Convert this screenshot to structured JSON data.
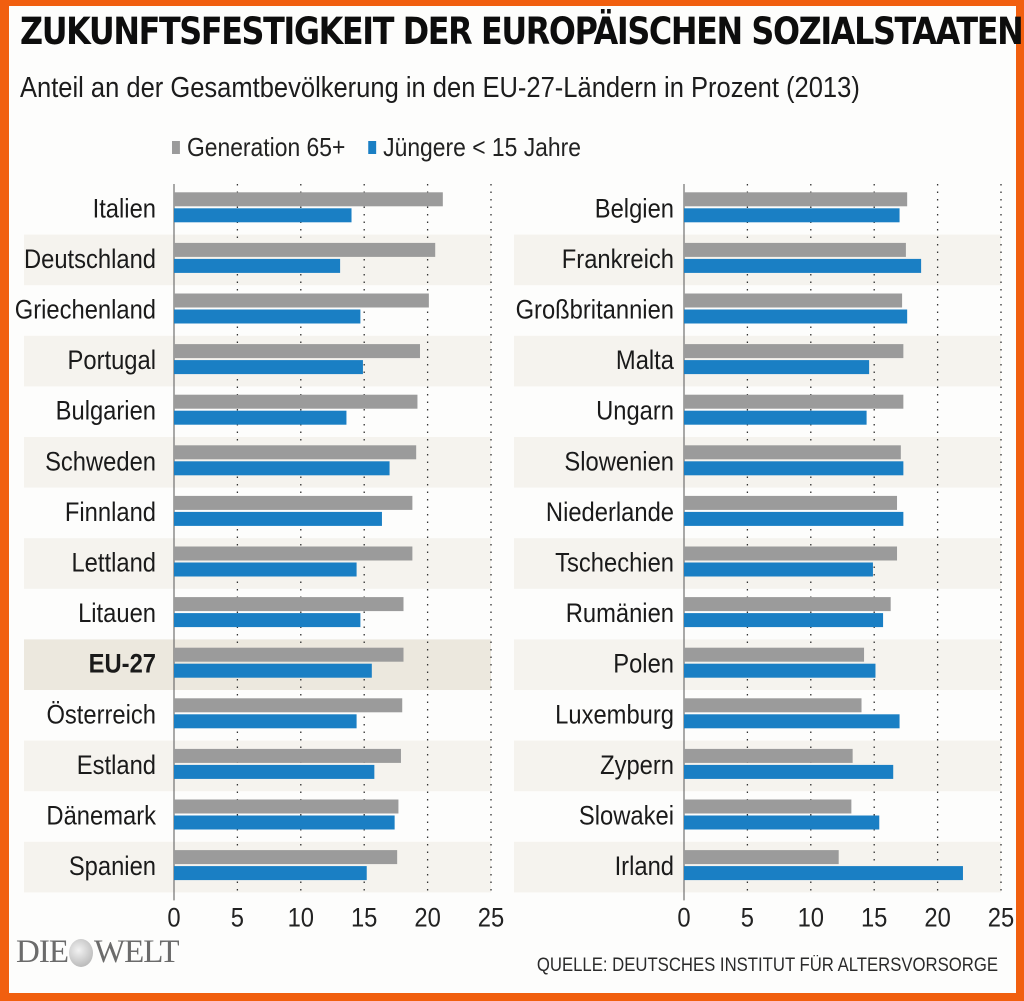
{
  "header": {
    "title": "ZUKUNFTSFESTIGKEIT DER EUROPÄISCHEN SOZIALSTAATEN",
    "subtitle": "Anteil an der Gesamtbevölkerung in den EU-27-Ländern in Prozent (2013)"
  },
  "legend": [
    {
      "label": "Generation 65+",
      "color": "#9b9b9b"
    },
    {
      "label": "Jüngere < 15 Jahre",
      "color": "#1a7fc4"
    }
  ],
  "footer": {
    "logo_left": "DIE",
    "logo_right": "WELT",
    "source": "QUELLE: DEUTSCHES INSTITUT FÜR ALTERSVORSORGE"
  },
  "colors": {
    "frame": "#f15f0f",
    "gray_bar": "#9b9b9b",
    "blue_bar": "#1a7fc4",
    "stripe": "#f5f3ee",
    "highlight": "#ece8de"
  },
  "chart_data": [
    {
      "type": "bar",
      "orientation": "horizontal",
      "xlim": [
        0,
        25
      ],
      "xticks": [
        0,
        5,
        10,
        15,
        20,
        25
      ],
      "grid": true,
      "legend_position": "top",
      "categories": [
        "Italien",
        "Deutschland",
        "Griechenland",
        "Portugal",
        "Bulgarien",
        "Schweden",
        "Finnland",
        "Lettland",
        "Litauen",
        "EU-27",
        "Österreich",
        "Estland",
        "Dänemark",
        "Spanien"
      ],
      "highlight": "EU-27",
      "series": [
        {
          "name": "Generation 65+",
          "values": [
            21.2,
            20.6,
            20.1,
            19.4,
            19.2,
            19.1,
            18.8,
            18.8,
            18.1,
            18.1,
            18.0,
            17.9,
            17.7,
            17.6
          ]
        },
        {
          "name": "Jüngere < 15 Jahre",
          "values": [
            14.0,
            13.1,
            14.7,
            14.9,
            13.6,
            17.0,
            16.4,
            14.4,
            14.7,
            15.6,
            14.4,
            15.8,
            17.4,
            15.2
          ]
        }
      ]
    },
    {
      "type": "bar",
      "orientation": "horizontal",
      "xlim": [
        0,
        25
      ],
      "xticks": [
        0,
        5,
        10,
        15,
        20,
        25
      ],
      "grid": true,
      "categories": [
        "Belgien",
        "Frankreich",
        "Großbritannien",
        "Malta",
        "Ungarn",
        "Slowenien",
        "Niederlande",
        "Tschechien",
        "Rumänien",
        "Polen",
        "Luxemburg",
        "Zypern",
        "Slowakei",
        "Irland"
      ],
      "series": [
        {
          "name": "Generation 65+",
          "values": [
            17.6,
            17.5,
            17.2,
            17.3,
            17.3,
            17.1,
            16.8,
            16.8,
            16.3,
            14.2,
            14.0,
            13.3,
            13.2,
            12.2
          ]
        },
        {
          "name": "Jüngere < 15 Jahre",
          "values": [
            17.0,
            18.7,
            17.6,
            14.6,
            14.4,
            17.3,
            17.3,
            14.9,
            15.7,
            15.1,
            17.0,
            16.5,
            15.4,
            22.0
          ]
        }
      ]
    }
  ]
}
